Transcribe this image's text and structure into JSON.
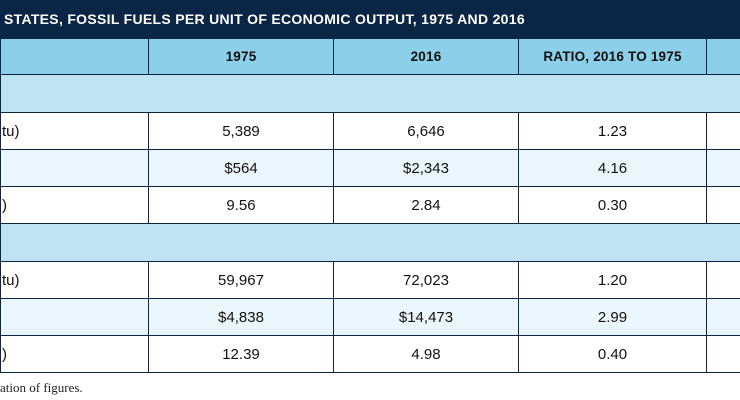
{
  "title": "STATES, FOSSIL FUELS PER UNIT OF ECONOMIC OUTPUT, 1975 AND 2016",
  "header": {
    "label": "",
    "col_1975": "1975",
    "col_2016": "2016",
    "col_ratio": "RATIO, 2016 TO 1975",
    "col_extra": ""
  },
  "section_1": [
    {
      "label": "tu)",
      "v1975": "5,389",
      "v2016": "6,646",
      "ratio": "1.23",
      "extra": ""
    },
    {
      "label": "",
      "v1975": "$564",
      "v2016": "$2,343",
      "ratio": "4.16",
      "extra": ""
    },
    {
      "label": ")",
      "v1975": "9.56",
      "v2016": "2.84",
      "ratio": "0.30",
      "extra": ""
    }
  ],
  "section_2": [
    {
      "label": "tu)",
      "v1975": "59,967",
      "v2016": "72,023",
      "ratio": "1.20",
      "extra": ""
    },
    {
      "label": "",
      "v1975": "$4,838",
      "v2016": "$14,473",
      "ratio": "2.99",
      "extra": ""
    },
    {
      "label": ")",
      "v1975": "12.39",
      "v2016": "4.98",
      "ratio": "0.40",
      "extra": ""
    }
  ],
  "footnote": "ation of figures."
}
